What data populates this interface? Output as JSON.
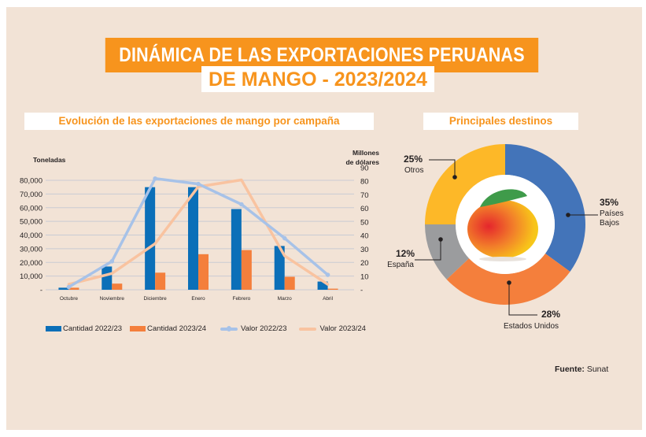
{
  "header": {
    "title_line1": "DINÁMICA DE LAS EXPORTACIONES PERUANAS",
    "title_line2": "DE MANGO - 2023/2024"
  },
  "colors": {
    "background": "#f2e3d6",
    "accent_orange": "#f7941d",
    "cantidad_2022": "#0b6fb8",
    "cantidad_2023": "#f47f3c",
    "valor_2022": "#a7c2e8",
    "valor_2023": "#f9c3a0",
    "pie_paises_bajos": "#4374b9",
    "pie_estados_unidos": "#f47f3c",
    "pie_espana": "#9b9c9e",
    "pie_otros": "#fdb828"
  },
  "source": {
    "label": "Fuente:",
    "value": "Sunat"
  },
  "chart_data": [
    {
      "type": "bar",
      "title": "Evolución de las exportaciones de mango por campaña",
      "ylabel": "Toneladas",
      "y2label_line1": "Millones",
      "y2label_line2": "de dólares",
      "categories": [
        "Octubre",
        "Noviembre",
        "Diciembre",
        "Enero",
        "Febrero",
        "Marzo",
        "Abril"
      ],
      "ylim": [
        0,
        80000
      ],
      "y_ticks": [
        "-",
        "10,000",
        "20,000",
        "30,000",
        "40,000",
        "50,000",
        "60,000",
        "70,000",
        "80,000"
      ],
      "y2lim": [
        0,
        90
      ],
      "y2_ticks": [
        "-",
        "10",
        "20",
        "30",
        "40",
        "50",
        "60",
        "70",
        "80",
        "90"
      ],
      "grid": true,
      "legend_position": "bottom",
      "series": [
        {
          "name": "Cantidad 2022/23",
          "kind": "bar",
          "axis": "left",
          "values": [
            1500,
            17000,
            75000,
            75000,
            59000,
            32000,
            6000
          ]
        },
        {
          "name": "Cantidad 2023/24",
          "kind": "bar",
          "axis": "left",
          "values": [
            1500,
            4500,
            12500,
            26000,
            29000,
            9500,
            800
          ]
        },
        {
          "name": "Valor 2022/23",
          "kind": "line",
          "axis": "right",
          "markers": true,
          "values": [
            2,
            21,
            82,
            78,
            63,
            38,
            11
          ]
        },
        {
          "name": "Valor 2023/24",
          "kind": "line",
          "axis": "right",
          "markers": false,
          "values": [
            4,
            12,
            34,
            76,
            81,
            25,
            4
          ]
        }
      ]
    },
    {
      "type": "pie",
      "title": "Principales destinos",
      "donut": true,
      "categories": [
        "Países Bajos",
        "Estados Unidos",
        "España",
        "Otros"
      ],
      "label_lines": [
        [
          "Países",
          "Bajos"
        ],
        [
          "Estados Unidos"
        ],
        [
          "España"
        ],
        [
          "Otros"
        ]
      ],
      "values": [
        35,
        28,
        12,
        25
      ],
      "value_labels": [
        "35%",
        "28%",
        "12%",
        "25%"
      ]
    }
  ]
}
